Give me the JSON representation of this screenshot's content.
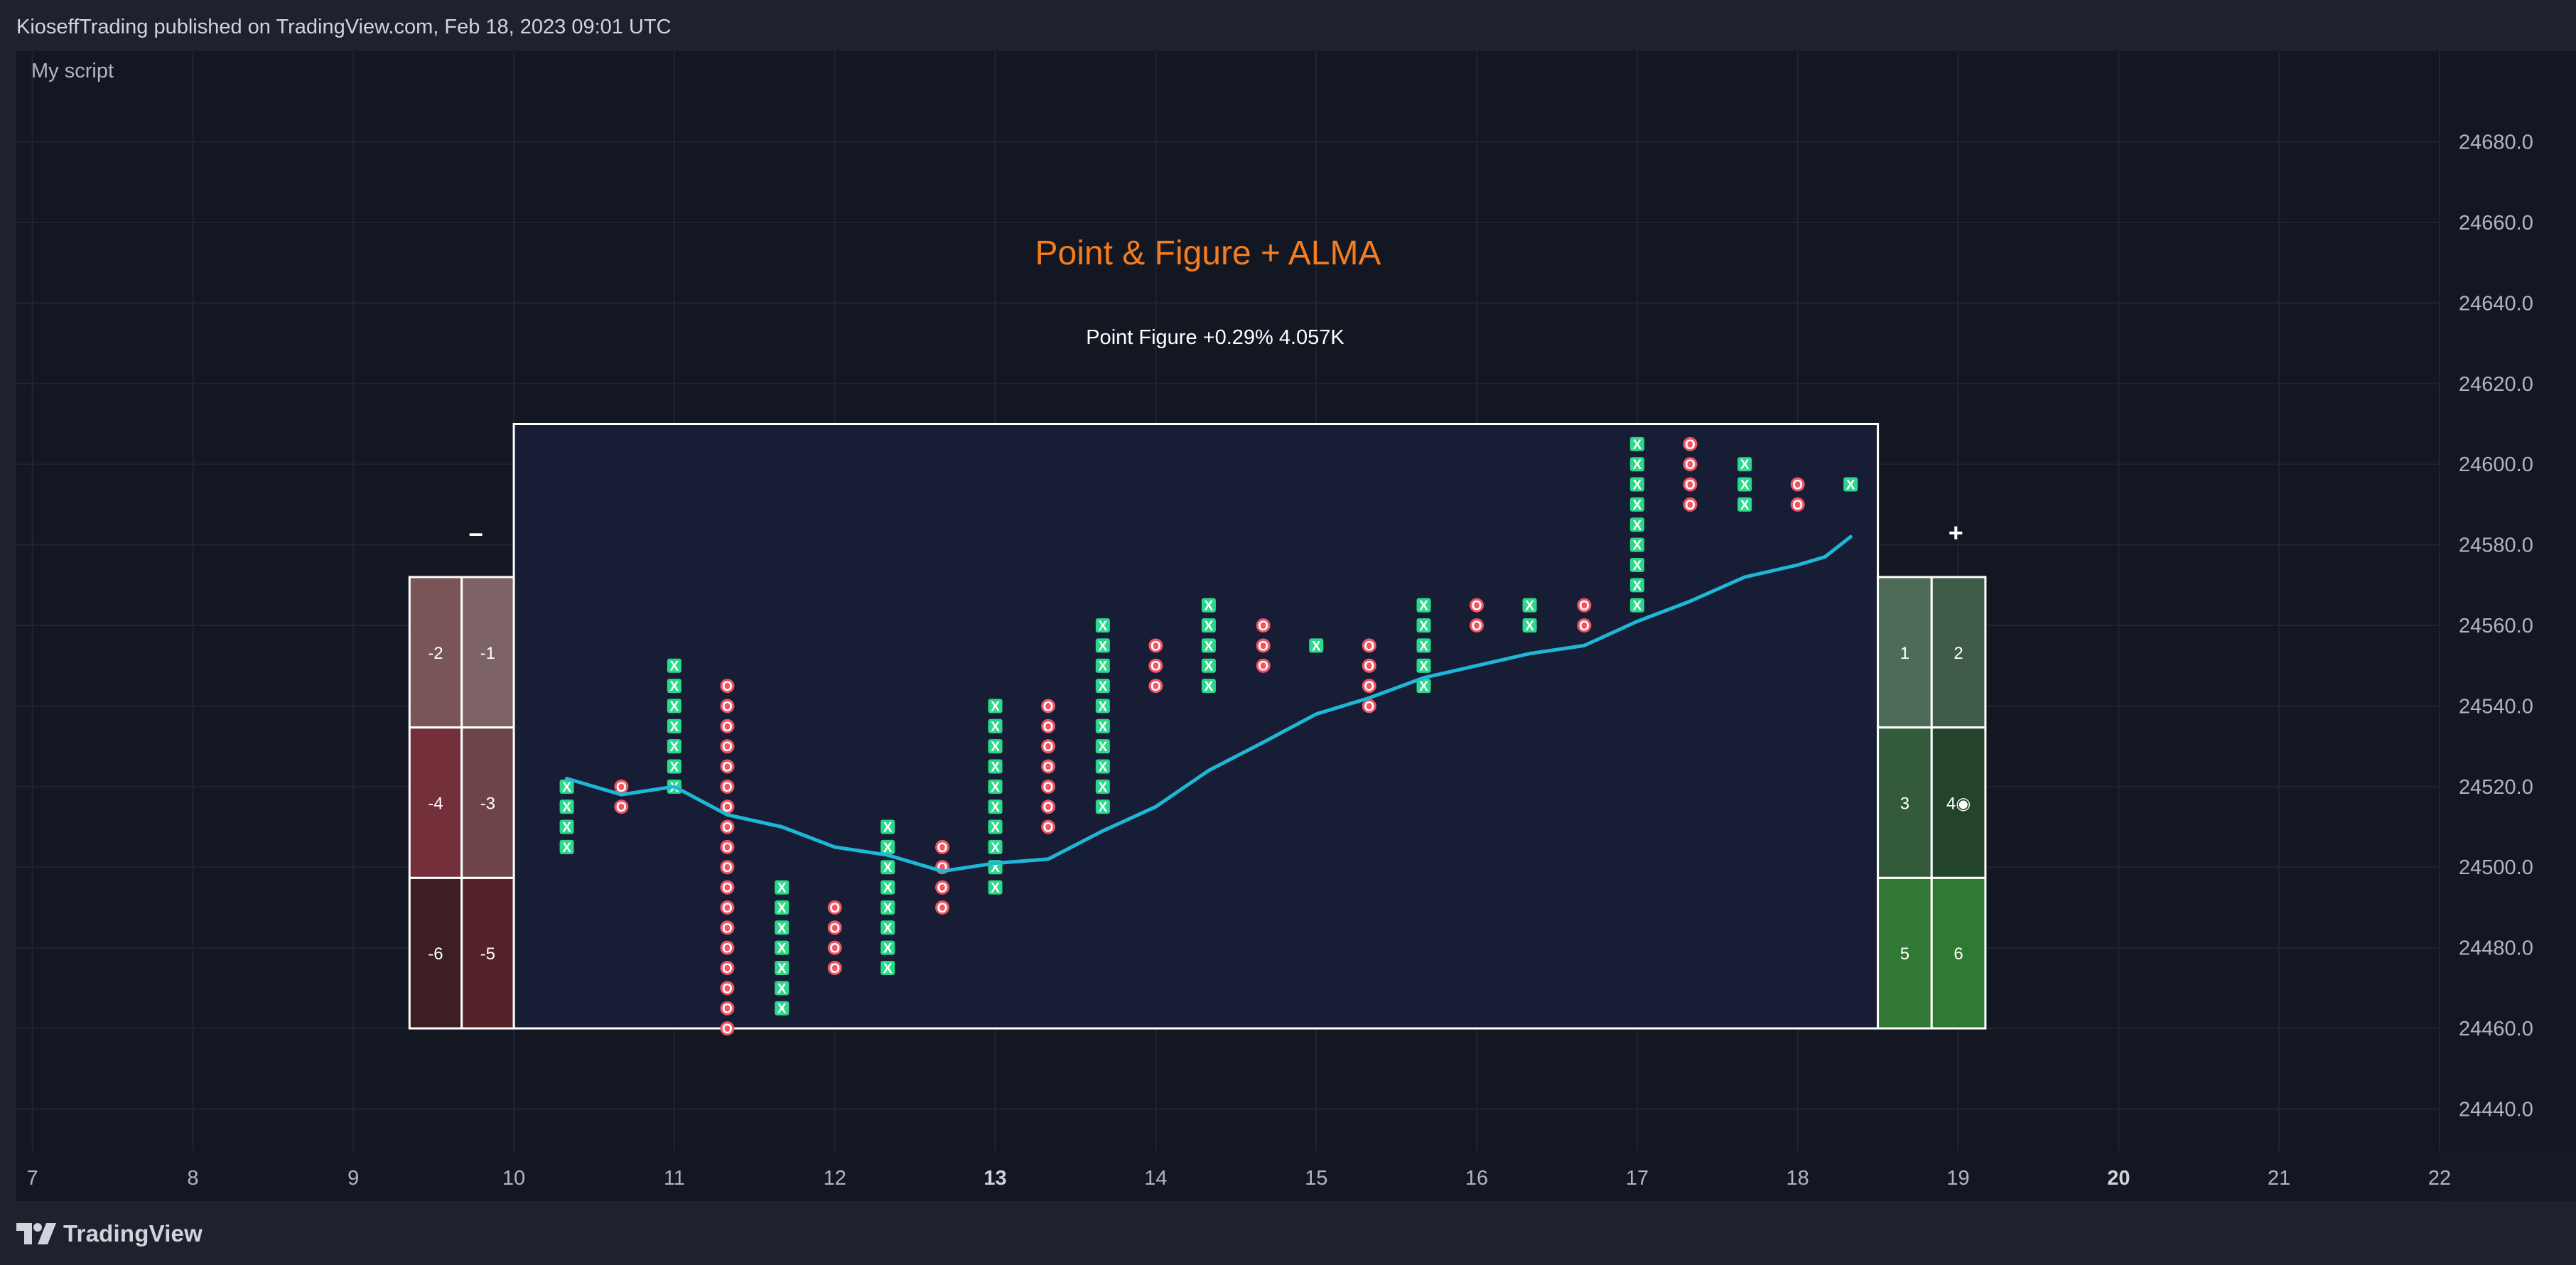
{
  "header": {
    "published_text": "KioseffTrading published on TradingView.com, Feb 18, 2023 09:01 UTC"
  },
  "indicator": {
    "script_name": "My script"
  },
  "footer": {
    "brand": "TradingView"
  },
  "chart_data": {
    "type": "scatter",
    "title": "Point & Figure + ALMA",
    "subtitle": "Point Figure +0.29% 4.057K",
    "xlabel": "",
    "ylabel": "",
    "x_ticks": [
      "7",
      "8",
      "9",
      "10",
      "11",
      "12",
      "13",
      "14",
      "15",
      "16",
      "17",
      "18",
      "19",
      "20",
      "21",
      "22"
    ],
    "bold_x_ticks": [
      "13",
      "20"
    ],
    "y_ticks": [
      24440.0,
      24460.0,
      24480.0,
      24500.0,
      24520.0,
      24540.0,
      24560.0,
      24580.0,
      24600.0,
      24620.0,
      24640.0,
      24660.0,
      24680.0
    ],
    "y_tick_labels": [
      "24440.0",
      "24460.0",
      "24480.0",
      "24500.0",
      "24520.0",
      "24540.0",
      "24560.0",
      "24580.0",
      "24600.0",
      "24620.0",
      "24640.0",
      "24660.0",
      "24680.0"
    ],
    "xlim": [
      6.9,
      22.0
    ],
    "ylim": [
      24429.5,
      24702.5
    ],
    "grid": true,
    "box_size": 5,
    "columns": [
      {
        "x": 10.33,
        "type": "X",
        "low": 24505,
        "high": 24520
      },
      {
        "x": 10.67,
        "type": "O",
        "low": 24515,
        "high": 24520
      },
      {
        "x": 11.0,
        "type": "X",
        "low": 24520,
        "high": 24550
      },
      {
        "x": 11.33,
        "type": "O",
        "low": 24460,
        "high": 24545
      },
      {
        "x": 11.67,
        "type": "X",
        "low": 24465,
        "high": 24495
      },
      {
        "x": 12.0,
        "type": "O",
        "low": 24475,
        "high": 24490
      },
      {
        "x": 12.33,
        "type": "X",
        "low": 24475,
        "high": 24510
      },
      {
        "x": 12.67,
        "type": "O",
        "low": 24490,
        "high": 24505
      },
      {
        "x": 13.0,
        "type": "X",
        "low": 24495,
        "high": 24540
      },
      {
        "x": 13.33,
        "type": "O",
        "low": 24510,
        "high": 24540
      },
      {
        "x": 13.67,
        "type": "X",
        "low": 24515,
        "high": 24560
      },
      {
        "x": 14.0,
        "type": "O",
        "low": 24545,
        "high": 24555
      },
      {
        "x": 14.33,
        "type": "X",
        "low": 24545,
        "high": 24565
      },
      {
        "x": 14.67,
        "type": "O",
        "low": 24550,
        "high": 24560
      },
      {
        "x": 15.0,
        "type": "X",
        "low": 24555,
        "high": 24555
      },
      {
        "x": 15.33,
        "type": "O",
        "low": 24540,
        "high": 24555
      },
      {
        "x": 15.67,
        "type": "X",
        "low": 24545,
        "high": 24565
      },
      {
        "x": 16.0,
        "type": "O",
        "low": 24560,
        "high": 24565
      },
      {
        "x": 16.33,
        "type": "X",
        "low": 24560,
        "high": 24565
      },
      {
        "x": 16.67,
        "type": "O",
        "low": 24560,
        "high": 24565
      },
      {
        "x": 17.0,
        "type": "X",
        "low": 24565,
        "high": 24605
      },
      {
        "x": 17.33,
        "type": "O",
        "low": 24590,
        "high": 24605
      },
      {
        "x": 17.67,
        "type": "X",
        "low": 24590,
        "high": 24600
      },
      {
        "x": 18.0,
        "type": "O",
        "low": 24590,
        "high": 24595
      },
      {
        "x": 18.33,
        "type": "X",
        "low": 24595,
        "high": 24595
      }
    ],
    "alma": {
      "name": "",
      "color": "#1fb7d6",
      "x": [
        10.33,
        10.67,
        11.0,
        11.33,
        11.67,
        12.0,
        12.33,
        12.67,
        13.0,
        13.33,
        13.67,
        14.0,
        14.33,
        14.67,
        15.0,
        15.33,
        15.67,
        16.0,
        16.33,
        16.67,
        17.0,
        17.33,
        17.67,
        18.0,
        18.17,
        18.33
      ],
      "y": [
        24522,
        24518,
        24520,
        24513,
        24510,
        24505,
        24503,
        24499,
        24501,
        24502,
        24509,
        24515,
        24524,
        24531,
        24538,
        24542,
        24547,
        24550,
        24553,
        24555,
        24561,
        24566,
        24572,
        24575,
        24577,
        24582
      ]
    },
    "panel": {
      "x0": 10.0,
      "x1": 18.5,
      "y0": 24460,
      "y1": 24610,
      "fill": "#171d34",
      "border": "#ffffff"
    },
    "gauges": {
      "negative": {
        "symbol": "–",
        "x0": 9.35,
        "x1": 10.0,
        "y0": 24460,
        "y1": 24572,
        "rows": [
          [
            "-2",
            "-1"
          ],
          [
            "-4",
            "-3"
          ],
          [
            "-6",
            "-5"
          ]
        ],
        "colors": [
          [
            "#795558",
            "#7d6366"
          ],
          [
            "#73303b",
            "#6d4549"
          ],
          [
            "#3c1e23",
            "#56222a"
          ]
        ]
      },
      "positive": {
        "symbol": "+",
        "x0": 18.5,
        "x1": 19.17,
        "y0": 24460,
        "y1": 24572,
        "rows": [
          [
            "1",
            "2"
          ],
          [
            "3",
            "4◉"
          ],
          [
            "5",
            "6"
          ]
        ],
        "colors": [
          [
            "#4d6b56",
            "#3f5c48"
          ],
          [
            "#335a3b",
            "#23442a"
          ],
          [
            "#317935",
            "#2e7a33"
          ]
        ]
      }
    },
    "colors": {
      "x_mark": "#2bd98a",
      "o_mark": "#f05564",
      "title": "#f57c1f",
      "grid": "#202430",
      "text": "#b2b5be"
    }
  }
}
